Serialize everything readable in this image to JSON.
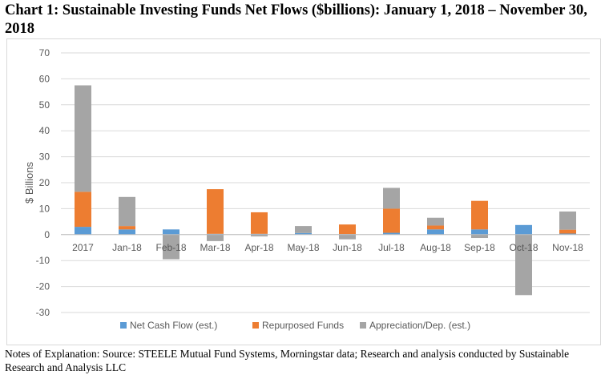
{
  "title": "Chart 1: Sustainable Investing Funds Net Flows ($billions):  January 1, 2018 – November 30, 2018",
  "notes": "Notes of Explanation:  Source: STEELE Mutual Fund Systems, Morningstar data; Research and analysis conducted by Sustainable Research and Analysis LLC",
  "chart_data": {
    "type": "bar",
    "stacked": true,
    "categories": [
      "2017",
      "Jan-18",
      "Feb-18",
      "Mar-18",
      "Apr-18",
      "May-18",
      "Jun-18",
      "Jul-18",
      "Aug-18",
      "Sep-18",
      "Oct-18",
      "Nov-18"
    ],
    "series": [
      {
        "name": "Net Cash Flow (est.)",
        "color": "#5b9bd5",
        "values": [
          3.0,
          2.0,
          2.0,
          0.3,
          0.3,
          0.6,
          0.2,
          0.7,
          2.0,
          2.0,
          3.7,
          0.4
        ]
      },
      {
        "name": "Repurposed Funds",
        "color": "#ed7d31",
        "values": [
          13.5,
          1.3,
          0.0,
          17.2,
          8.3,
          0.0,
          3.7,
          9.3,
          1.5,
          11.0,
          0.0,
          1.5
        ]
      },
      {
        "name": "Appreciation/Dep. (est.)",
        "color": "#a5a5a5",
        "values": [
          41.0,
          11.2,
          -9.5,
          -2.5,
          -0.7,
          2.7,
          -1.8,
          8.0,
          3.0,
          -1.3,
          -23.3,
          7.0
        ]
      }
    ],
    "ylabel": "$ Billions",
    "ylim": [
      -30,
      70
    ],
    "yticks": [
      -30,
      -20,
      -10,
      0,
      10,
      20,
      30,
      40,
      50,
      60,
      70
    ],
    "grid": true,
    "legend": "bottom"
  }
}
